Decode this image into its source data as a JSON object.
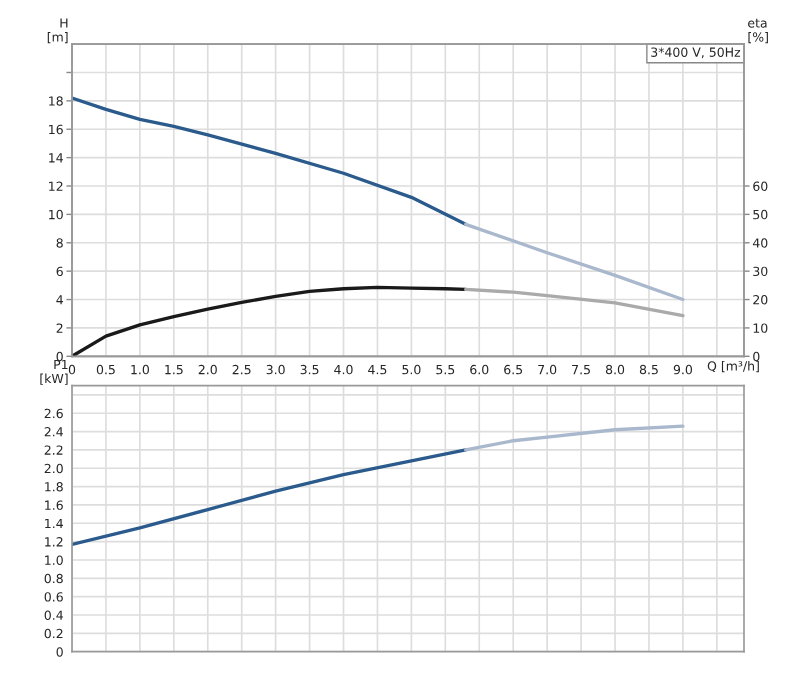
{
  "chart_data": [
    {
      "type": "line",
      "title": "3*400 V, 50Hz",
      "xlabel": "Q [m³/h]",
      "ylabel": "H\n[m]",
      "y2label": "eta\n[%]",
      "xlim": [
        0,
        9.9
      ],
      "ylim": [
        0,
        22
      ],
      "y2lim": [
        0,
        110
      ],
      "xticks": [
        0,
        0.5,
        {
          "value": 1,
          "label": "1.0"
        },
        1.5,
        {
          "value": 2,
          "label": "2.0"
        },
        2.5,
        {
          "value": 3,
          "label": "3.0"
        },
        3.5,
        {
          "value": 4,
          "label": "4.0"
        },
        4.5,
        {
          "value": 5,
          "label": "5.0"
        },
        5.5,
        {
          "value": 6,
          "label": "6.0"
        },
        6.5,
        {
          "value": 7,
          "label": "7.0"
        },
        7.5,
        {
          "value": 8,
          "label": "8.0"
        },
        8.5,
        {
          "value": 9,
          "label": "9.0"
        },
        {
          "value": 9.5,
          "label": null
        }
      ],
      "yticks": [
        0,
        2,
        4,
        6,
        8,
        10,
        12,
        14,
        16,
        18,
        {
          "value": 20,
          "label": null
        }
      ],
      "y2ticks": [
        0,
        10,
        20,
        30,
        40,
        50,
        60
      ],
      "grid": true,
      "legend": false,
      "series": [
        {
          "color": "#2b5b8c",
          "x": [
            0,
            0.5,
            1.0,
            1.5,
            2.0,
            3.0,
            4.0,
            5.0,
            5.8
          ],
          "values": [
            18.2,
            17.4,
            16.7,
            16.2,
            15.6,
            14.3,
            12.9,
            11.2,
            9.3
          ]
        },
        {
          "color": "#a9b8cc",
          "x": [
            5.8,
            7.0,
            8.0,
            9.0
          ],
          "values": [
            9.3,
            7.3,
            5.7,
            4.0
          ]
        },
        {
          "color": "#1a1a1a",
          "axis": "y2",
          "x": [
            0,
            0.5,
            1.0,
            1.5,
            2.0,
            2.5,
            3.0,
            3.5,
            4.0,
            4.5,
            5.0,
            5.5,
            5.8
          ],
          "values": [
            0,
            7.1,
            11.1,
            14,
            16.6,
            19,
            21.1,
            22.9,
            23.8,
            24.3,
            24,
            23.8,
            23.6
          ]
        },
        {
          "color": "#aaaaaa",
          "axis": "y2",
          "x": [
            5.8,
            6.5,
            7.0,
            8.0,
            9.0
          ],
          "values": [
            23.6,
            22.6,
            21.4,
            18.8,
            14.3
          ]
        }
      ]
    },
    {
      "type": "line",
      "ylabel": "P1\n[kW]",
      "xlim": [
        0,
        9.9
      ],
      "ylim": [
        0,
        2.9
      ],
      "xticks": [
        0,
        0.5,
        1,
        1.5,
        2,
        2.5,
        3,
        3.5,
        4,
        4.5,
        5,
        5.5,
        6,
        6.5,
        7,
        7.5,
        8,
        8.5,
        9,
        9.5
      ],
      "yticks": [
        0,
        0.2,
        0.4,
        0.6,
        0.8,
        {
          "value": 1,
          "label": "1.0"
        },
        1.2,
        1.4,
        1.6,
        1.8,
        {
          "value": 2,
          "label": "2.0"
        },
        2.2,
        2.4,
        2.6,
        {
          "value": 2.8,
          "label": null
        }
      ],
      "tick_labels": "y",
      "grid": true,
      "legend": false,
      "series": [
        {
          "color": "#2b5b8c",
          "x": [
            0,
            1.0,
            2.0,
            3.0,
            4.0,
            5.0,
            5.8
          ],
          "values": [
            1.17,
            1.35,
            1.55,
            1.75,
            1.93,
            2.08,
            2.2
          ]
        },
        {
          "color": "#a9b8cc",
          "x": [
            5.8,
            6.5,
            7.0,
            8.0,
            9.0
          ],
          "values": [
            2.2,
            2.3,
            2.34,
            2.42,
            2.46
          ]
        }
      ]
    }
  ]
}
